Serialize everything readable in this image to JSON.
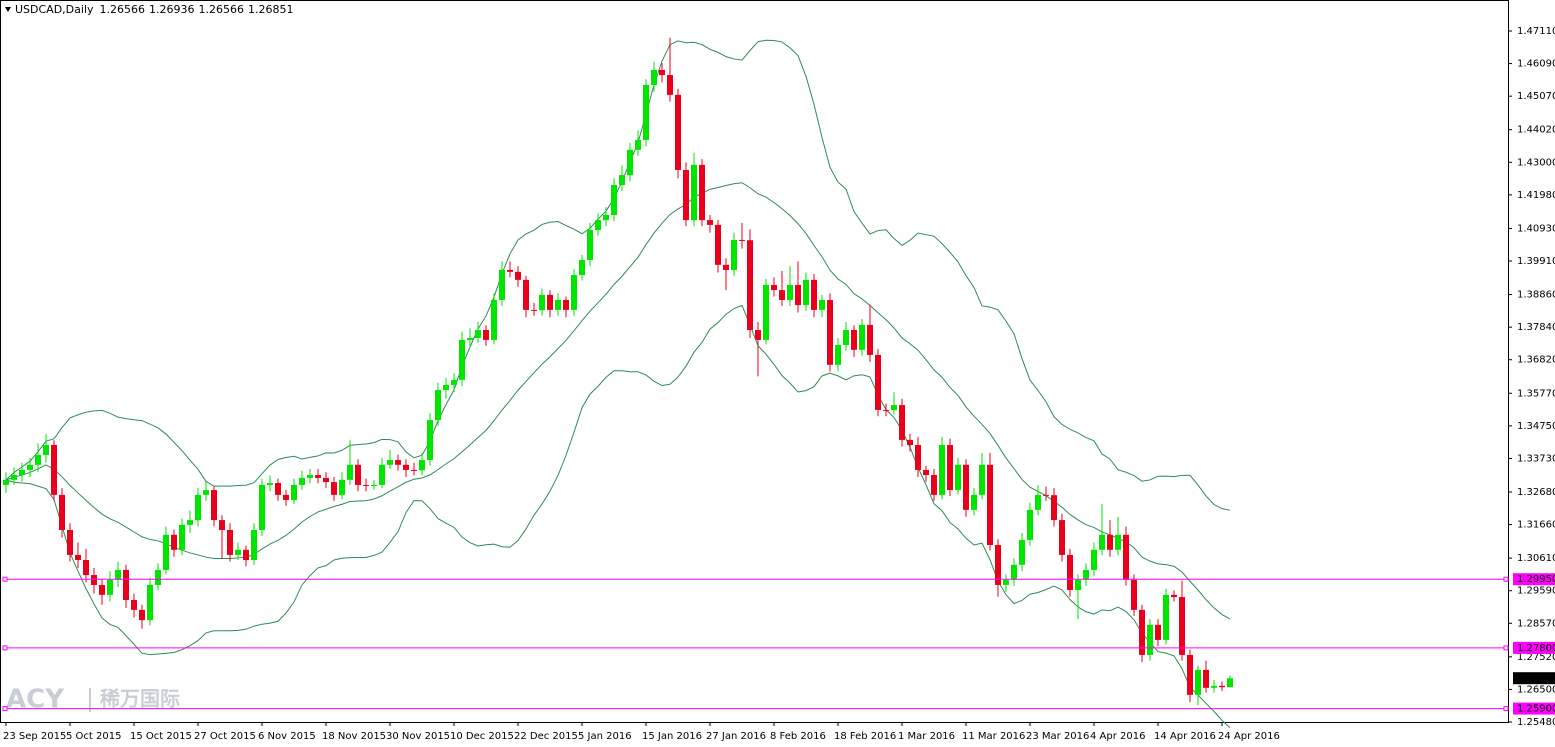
{
  "chart_data": {
    "type": "candlestick",
    "symbol": "USDCAD,Daily",
    "header_values": [
      1.26566,
      1.26936,
      1.26566,
      1.26851
    ],
    "watermark": [
      "ACY",
      "稀万国际"
    ],
    "up_color": "#00e600",
    "down_color": "#e8001c",
    "band_color": "#2e8b57",
    "level_color": "#ff00ff",
    "ylim": [
      1.2548,
      1.4808
    ],
    "yticks": [
      {
        "value": 1.4711,
        "label": "1.47110"
      },
      {
        "value": 1.4609,
        "label": "1.46090"
      },
      {
        "value": 1.4507,
        "label": "1.45070"
      },
      {
        "value": 1.4402,
        "label": "1.44020"
      },
      {
        "value": 1.43,
        "label": "1.43000"
      },
      {
        "value": 1.4198,
        "label": "1.41980"
      },
      {
        "value": 1.4093,
        "label": "1.40930"
      },
      {
        "value": 1.3991,
        "label": "1.39910"
      },
      {
        "value": 1.3886,
        "label": "1.38860"
      },
      {
        "value": 1.3784,
        "label": "1.37840"
      },
      {
        "value": 1.3682,
        "label": "1.36820"
      },
      {
        "value": 1.3577,
        "label": "1.35770"
      },
      {
        "value": 1.3475,
        "label": "1.34750"
      },
      {
        "value": 1.3373,
        "label": "1.33730"
      },
      {
        "value": 1.3268,
        "label": "1.32680"
      },
      {
        "value": 1.3166,
        "label": "1.31660"
      },
      {
        "value": 1.3061,
        "label": "1.30610"
      },
      {
        "value": 1.2959,
        "label": "1.29590"
      },
      {
        "value": 1.2857,
        "label": "1.28570"
      },
      {
        "value": 1.2752,
        "label": "1.27520"
      },
      {
        "value": 1.265,
        "label": "1.26500"
      },
      {
        "value": 1.2548,
        "label": "1.25480"
      }
    ],
    "levels": [
      {
        "value": 1.2995,
        "label": "1.29950"
      },
      {
        "value": 1.278,
        "label": "1.27800"
      },
      {
        "value": 1.259,
        "label": "1.25900"
      }
    ],
    "last_price": 1.26851,
    "categories": [
      "23 Sep 2015",
      null,
      null,
      null,
      null,
      null,
      null,
      null,
      "5 Oct 2015",
      null,
      null,
      null,
      null,
      null,
      null,
      null,
      "15 Oct 2015",
      null,
      null,
      null,
      null,
      null,
      null,
      null,
      "27 Oct 2015",
      null,
      null,
      null,
      null,
      null,
      null,
      null,
      "6 Nov 2015",
      null,
      null,
      null,
      null,
      null,
      null,
      null,
      "18 Nov 2015",
      null,
      null,
      null,
      null,
      null,
      null,
      null,
      "30 Nov 2015",
      null,
      null,
      null,
      null,
      null,
      null,
      null,
      "10 Dec 2015",
      null,
      null,
      null,
      null,
      null,
      null,
      null,
      "22 Dec 2015",
      null,
      null,
      null,
      null,
      null,
      null,
      null,
      "5 Jan 2016",
      null,
      null,
      null,
      null,
      null,
      null,
      null,
      "15 Jan 2016",
      null,
      null,
      null,
      null,
      null,
      null,
      null,
      "27 Jan 2016",
      null,
      null,
      null,
      null,
      null,
      null,
      null,
      "8 Feb 2016",
      null,
      null,
      null,
      null,
      null,
      null,
      null,
      "18 Feb 2016",
      null,
      null,
      null,
      null,
      null,
      null,
      null,
      "1 Mar 2016",
      null,
      null,
      null,
      null,
      null,
      null,
      null,
      "11 Mar 2016",
      null,
      null,
      null,
      null,
      null,
      null,
      null,
      "23 Mar 2016",
      null,
      null,
      null,
      null,
      null,
      null,
      null,
      "4 Apr 2016",
      null,
      null,
      null,
      null,
      null,
      null,
      null,
      "14 Apr 2016",
      null,
      null,
      null,
      null,
      null,
      null,
      null,
      "24 Apr 2016",
      null
    ],
    "ohlc": [
      [
        1.329,
        1.333,
        1.3265,
        1.3306
      ],
      [
        1.3306,
        1.3345,
        1.329,
        1.3321
      ],
      [
        1.3321,
        1.336,
        1.33,
        1.3337
      ],
      [
        1.3337,
        1.3375,
        1.3315,
        1.3353
      ],
      [
        1.3353,
        1.342,
        1.333,
        1.3384
      ],
      [
        1.3384,
        1.345,
        1.336,
        1.3415
      ],
      [
        1.3415,
        1.343,
        1.324,
        1.3259
      ],
      [
        1.3259,
        1.328,
        1.3125,
        1.3149
      ],
      [
        1.3149,
        1.317,
        1.305,
        1.3071
      ],
      [
        1.3071,
        1.311,
        1.303,
        1.3055
      ],
      [
        1.3055,
        1.309,
        1.2985,
        1.3008
      ],
      [
        1.3008,
        1.303,
        1.295,
        1.2977
      ],
      [
        1.2977,
        1.2995,
        1.2915,
        1.2946
      ],
      [
        1.2946,
        1.302,
        1.2925,
        1.2993
      ],
      [
        1.2993,
        1.305,
        1.297,
        1.3024
      ],
      [
        1.3024,
        1.304,
        1.2905,
        1.293
      ],
      [
        1.293,
        1.295,
        1.2875,
        1.2899
      ],
      [
        1.2899,
        1.2915,
        1.284,
        1.2867
      ],
      [
        1.2867,
        1.3,
        1.285,
        1.2977
      ],
      [
        1.2977,
        1.3045,
        1.296,
        1.3024
      ],
      [
        1.3024,
        1.316,
        1.301,
        1.3134
      ],
      [
        1.3134,
        1.315,
        1.3065,
        1.3087
      ],
      [
        1.3087,
        1.3185,
        1.307,
        1.3165
      ],
      [
        1.3165,
        1.321,
        1.314,
        1.318
      ],
      [
        1.318,
        1.328,
        1.316,
        1.3259
      ],
      [
        1.3259,
        1.33,
        1.324,
        1.3274
      ],
      [
        1.3274,
        1.3285,
        1.316,
        1.318
      ],
      [
        1.318,
        1.3195,
        1.306,
        1.3149
      ],
      [
        1.3149,
        1.317,
        1.305,
        1.3071
      ],
      [
        1.3071,
        1.311,
        1.3055,
        1.3087
      ],
      [
        1.3087,
        1.31,
        1.3035,
        1.3055
      ],
      [
        1.3055,
        1.317,
        1.304,
        1.3149
      ],
      [
        1.3149,
        1.331,
        1.313,
        1.329
      ],
      [
        1.329,
        1.332,
        1.327,
        1.3296
      ],
      [
        1.3296,
        1.331,
        1.324,
        1.3259
      ],
      [
        1.3259,
        1.3275,
        1.3225,
        1.3243
      ],
      [
        1.3243,
        1.331,
        1.323,
        1.329
      ],
      [
        1.329,
        1.3335,
        1.3275,
        1.3312
      ],
      [
        1.3312,
        1.334,
        1.3295,
        1.3321
      ],
      [
        1.3321,
        1.334,
        1.3295,
        1.3312
      ],
      [
        1.3312,
        1.333,
        1.328,
        1.3299
      ],
      [
        1.3299,
        1.3315,
        1.324,
        1.3259
      ],
      [
        1.3259,
        1.333,
        1.3245,
        1.3306
      ],
      [
        1.3306,
        1.343,
        1.329,
        1.3353
      ],
      [
        1.3353,
        1.337,
        1.327,
        1.329
      ],
      [
        1.329,
        1.331,
        1.327,
        1.3289
      ],
      [
        1.3289,
        1.3305,
        1.3275,
        1.329
      ],
      [
        1.329,
        1.3375,
        1.328,
        1.3353
      ],
      [
        1.3353,
        1.34,
        1.334,
        1.3368
      ],
      [
        1.3368,
        1.3385,
        1.3335,
        1.3353
      ],
      [
        1.3353,
        1.337,
        1.3315,
        1.3337
      ],
      [
        1.3337,
        1.336,
        1.332,
        1.3336
      ],
      [
        1.3336,
        1.339,
        1.332,
        1.3368
      ],
      [
        1.3368,
        1.3515,
        1.335,
        1.3493
      ],
      [
        1.3493,
        1.361,
        1.3475,
        1.3587
      ],
      [
        1.3587,
        1.3625,
        1.356,
        1.3603
      ],
      [
        1.3603,
        1.364,
        1.358,
        1.3619
      ],
      [
        1.3619,
        1.377,
        1.36,
        1.3744
      ],
      [
        1.3744,
        1.378,
        1.372,
        1.375
      ],
      [
        1.375,
        1.38,
        1.3735,
        1.3775
      ],
      [
        1.3775,
        1.379,
        1.3725,
        1.3744
      ],
      [
        1.3744,
        1.389,
        1.373,
        1.3869
      ],
      [
        1.3869,
        1.399,
        1.385,
        1.3963
      ],
      [
        1.3963,
        1.399,
        1.394,
        1.3957
      ],
      [
        1.3957,
        1.3975,
        1.391,
        1.3932
      ],
      [
        1.3932,
        1.3945,
        1.3815,
        1.3838
      ],
      [
        1.3838,
        1.386,
        1.382,
        1.3837
      ],
      [
        1.3837,
        1.3905,
        1.382,
        1.3885
      ],
      [
        1.3885,
        1.39,
        1.3815,
        1.3838
      ],
      [
        1.3838,
        1.389,
        1.382,
        1.3869
      ],
      [
        1.3869,
        1.388,
        1.3815,
        1.3838
      ],
      [
        1.3838,
        1.3965,
        1.382,
        1.3947
      ],
      [
        1.3947,
        1.401,
        1.393,
        1.3994
      ],
      [
        1.3994,
        1.411,
        1.3975,
        1.4088
      ],
      [
        1.4088,
        1.414,
        1.407,
        1.4119
      ],
      [
        1.4119,
        1.416,
        1.41,
        1.4135
      ],
      [
        1.4135,
        1.425,
        1.4115,
        1.4229
      ],
      [
        1.4229,
        1.429,
        1.421,
        1.426
      ],
      [
        1.426,
        1.436,
        1.424,
        1.4339
      ],
      [
        1.4339,
        1.44,
        1.432,
        1.437
      ],
      [
        1.437,
        1.456,
        1.435,
        1.4542
      ],
      [
        1.4542,
        1.4615,
        1.452,
        1.4589
      ],
      [
        1.4589,
        1.461,
        1.455,
        1.4573
      ],
      [
        1.4573,
        1.469,
        1.449,
        1.4511
      ],
      [
        1.4511,
        1.453,
        1.425,
        1.4276
      ],
      [
        1.4276,
        1.43,
        1.41,
        1.4119
      ],
      [
        1.4119,
        1.433,
        1.41,
        1.4292
      ],
      [
        1.4292,
        1.431,
        1.41,
        1.4119
      ],
      [
        1.4119,
        1.4135,
        1.408,
        1.4104
      ],
      [
        1.4104,
        1.412,
        1.3955,
        1.3979
      ],
      [
        1.3979,
        1.4,
        1.39,
        1.3963
      ],
      [
        1.3963,
        1.408,
        1.3945,
        1.4057
      ],
      [
        1.4057,
        1.411,
        1.403,
        1.4056
      ],
      [
        1.4056,
        1.409,
        1.375,
        1.3775
      ],
      [
        1.3775,
        1.38,
        1.363,
        1.3744
      ],
      [
        1.3744,
        1.3935,
        1.373,
        1.3916
      ],
      [
        1.3916,
        1.394,
        1.388,
        1.39
      ],
      [
        1.39,
        1.396,
        1.385,
        1.3869
      ],
      [
        1.3869,
        1.3975,
        1.385,
        1.3916
      ],
      [
        1.3916,
        1.399,
        1.383,
        1.3853
      ],
      [
        1.3853,
        1.3955,
        1.3835,
        1.3932
      ],
      [
        1.3932,
        1.395,
        1.3815,
        1.3838
      ],
      [
        1.3838,
        1.3885,
        1.3815,
        1.3869
      ],
      [
        1.3869,
        1.389,
        1.3645,
        1.3666
      ],
      [
        1.3666,
        1.375,
        1.3645,
        1.3728
      ],
      [
        1.3728,
        1.38,
        1.371,
        1.3775
      ],
      [
        1.3775,
        1.379,
        1.369,
        1.3713
      ],
      [
        1.3713,
        1.381,
        1.3695,
        1.3791
      ],
      [
        1.3791,
        1.3855,
        1.3675,
        1.3697
      ],
      [
        1.3697,
        1.3715,
        1.3505,
        1.3525
      ],
      [
        1.3525,
        1.3545,
        1.3505,
        1.3524
      ],
      [
        1.3524,
        1.358,
        1.351,
        1.354
      ],
      [
        1.354,
        1.356,
        1.341,
        1.3431
      ],
      [
        1.3431,
        1.345,
        1.3395,
        1.3415
      ],
      [
        1.3415,
        1.344,
        1.3315,
        1.3337
      ],
      [
        1.3337,
        1.335,
        1.33,
        1.3321
      ],
      [
        1.3321,
        1.334,
        1.324,
        1.3259
      ],
      [
        1.3259,
        1.344,
        1.3245,
        1.3415
      ],
      [
        1.3415,
        1.3435,
        1.3255,
        1.3274
      ],
      [
        1.3274,
        1.3375,
        1.326,
        1.3353
      ],
      [
        1.3353,
        1.337,
        1.319,
        1.3212
      ],
      [
        1.3212,
        1.328,
        1.3195,
        1.3259
      ],
      [
        1.3259,
        1.339,
        1.3245,
        1.3353
      ],
      [
        1.3353,
        1.339,
        1.3085,
        1.3102
      ],
      [
        1.3102,
        1.312,
        1.294,
        1.2977
      ],
      [
        1.2977,
        1.301,
        1.2955,
        1.2993
      ],
      [
        1.2993,
        1.306,
        1.2975,
        1.304
      ],
      [
        1.304,
        1.314,
        1.302,
        1.3118
      ],
      [
        1.3118,
        1.3235,
        1.31,
        1.3212
      ],
      [
        1.3212,
        1.329,
        1.3195,
        1.3259
      ],
      [
        1.3259,
        1.3285,
        1.324,
        1.3258
      ],
      [
        1.3258,
        1.328,
        1.316,
        1.318
      ],
      [
        1.318,
        1.32,
        1.305,
        1.3071
      ],
      [
        1.3071,
        1.309,
        1.294,
        1.2961
      ],
      [
        1.2961,
        1.301,
        1.287,
        1.2993
      ],
      [
        1.2993,
        1.3045,
        1.2975,
        1.3024
      ],
      [
        1.3024,
        1.311,
        1.3005,
        1.3087
      ],
      [
        1.3087,
        1.323,
        1.307,
        1.3134
      ],
      [
        1.3134,
        1.318,
        1.3065,
        1.3087
      ],
      [
        1.3087,
        1.319,
        1.307,
        1.3134
      ],
      [
        1.3134,
        1.316,
        1.2975,
        1.2993
      ],
      [
        1.2993,
        1.301,
        1.288,
        1.2899
      ],
      [
        1.2899,
        1.2915,
        1.2735,
        1.2758
      ],
      [
        1.2758,
        1.287,
        1.274,
        1.2852
      ],
      [
        1.2852,
        1.287,
        1.2785,
        1.2805
      ],
      [
        1.2805,
        1.2965,
        1.279,
        1.2946
      ],
      [
        1.2946,
        1.296,
        1.2925,
        1.2939
      ],
      [
        1.2939,
        1.299,
        1.274,
        1.2758
      ],
      [
        1.2758,
        1.2775,
        1.261,
        1.2633
      ],
      [
        1.2633,
        1.2725,
        1.26,
        1.2711
      ],
      [
        1.2711,
        1.274,
        1.264,
        1.2655
      ],
      [
        1.2655,
        1.268,
        1.264,
        1.2661
      ],
      [
        1.2661,
        1.2675,
        1.2645,
        1.2657
      ],
      [
        1.2657,
        1.2694,
        1.2657,
        1.2685
      ]
    ]
  }
}
